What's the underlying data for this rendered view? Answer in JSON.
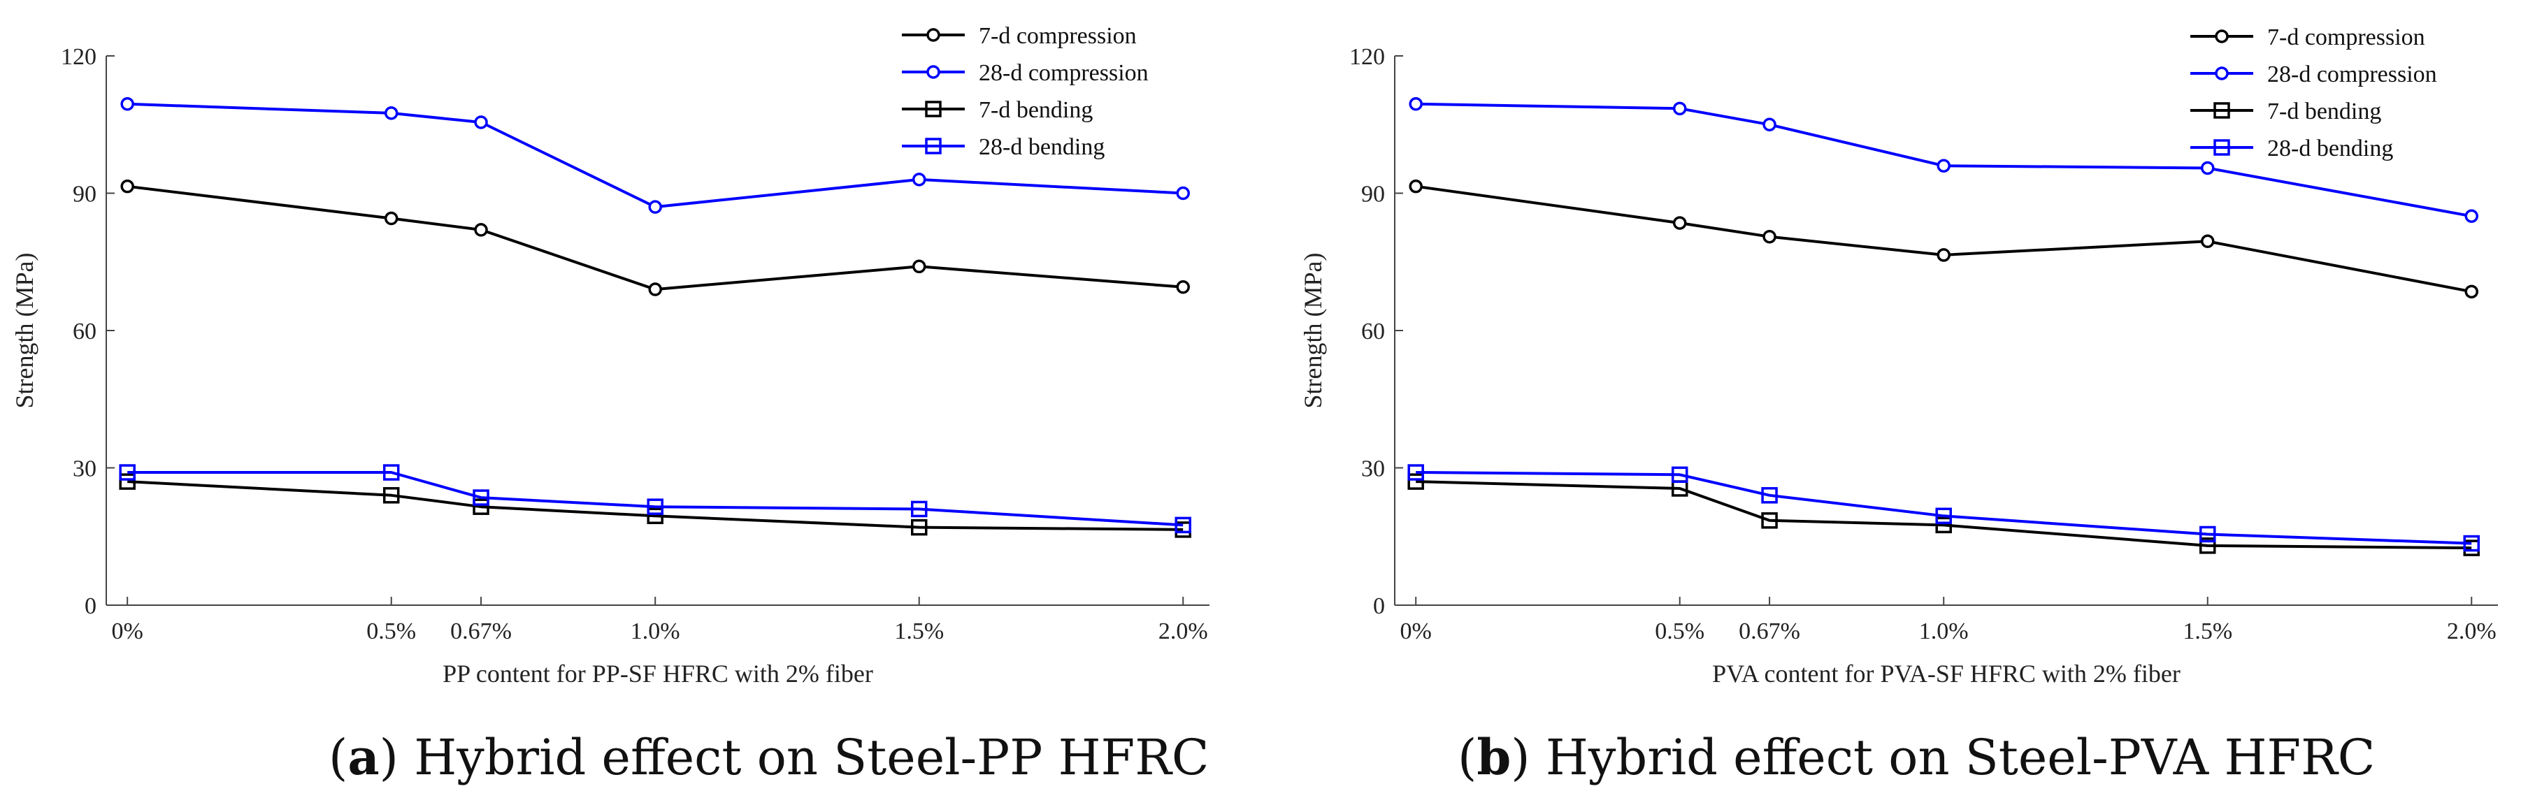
{
  "chart_data": [
    {
      "type": "line",
      "panel": "a",
      "caption_letter": "a",
      "caption_text": "Hybrid effect on Steel-PP HFRC",
      "xlabel": "PP content for PP-SF HFRC with 2% fiber",
      "ylabel": "Strength (MPa)",
      "ylim": [
        0,
        120
      ],
      "yticks": [
        0,
        30,
        60,
        90,
        120
      ],
      "x": [
        0,
        0.5,
        0.67,
        1.0,
        1.5,
        2.0
      ],
      "xticklabels": [
        "0%",
        "0.5%",
        "0.67%",
        "1.0%",
        "1.5%",
        "2.0%"
      ],
      "xlim": [
        -0.04,
        2.05
      ],
      "legend_position": "top-right",
      "series": [
        {
          "name": "7-d compression",
          "values": [
            91.5,
            84.5,
            82,
            69,
            74,
            69.5
          ],
          "color": "#000000",
          "marker": "circle"
        },
        {
          "name": "28-d compression",
          "values": [
            109.5,
            107.5,
            105.5,
            87,
            93,
            90
          ],
          "color": "#0000ff",
          "marker": "circle"
        },
        {
          "name": "7-d bending",
          "values": [
            27,
            24,
            21.5,
            19.5,
            17,
            16.5
          ],
          "color": "#000000",
          "marker": "square"
        },
        {
          "name": "28-d bending",
          "values": [
            29,
            29,
            23.5,
            21.5,
            21,
            17.5
          ],
          "color": "#0000ff",
          "marker": "square"
        }
      ]
    },
    {
      "type": "line",
      "panel": "b",
      "caption_letter": "b",
      "caption_text": "Hybrid effect on Steel-PVA HFRC",
      "xlabel": "PVA content for PVA-SF HFRC with 2% fiber",
      "ylabel": "Strength (MPa)",
      "ylim": [
        0,
        120
      ],
      "yticks": [
        0,
        30,
        60,
        90,
        120
      ],
      "x": [
        0,
        0.5,
        0.67,
        1.0,
        1.5,
        2.0
      ],
      "xticklabels": [
        "0%",
        "0.5%",
        "0.67%",
        "1.0%",
        "1.5%",
        "2.0%"
      ],
      "xlim": [
        -0.04,
        2.05
      ],
      "legend_position": "top-right",
      "series": [
        {
          "name": "7-d compression",
          "values": [
            91.5,
            83.5,
            80.5,
            76.5,
            79.5,
            68.5
          ],
          "color": "#000000",
          "marker": "circle"
        },
        {
          "name": "28-d compression",
          "values": [
            109.5,
            108.5,
            105,
            96,
            95.5,
            85
          ],
          "color": "#0000ff",
          "marker": "circle"
        },
        {
          "name": "7-d bending",
          "values": [
            27,
            25.5,
            18.5,
            17.5,
            13,
            12.5
          ],
          "color": "#000000",
          "marker": "square"
        },
        {
          "name": "28-d bending",
          "values": [
            29,
            28.5,
            24,
            19.5,
            15.5,
            13.5
          ],
          "color": "#0000ff",
          "marker": "square"
        }
      ]
    }
  ]
}
